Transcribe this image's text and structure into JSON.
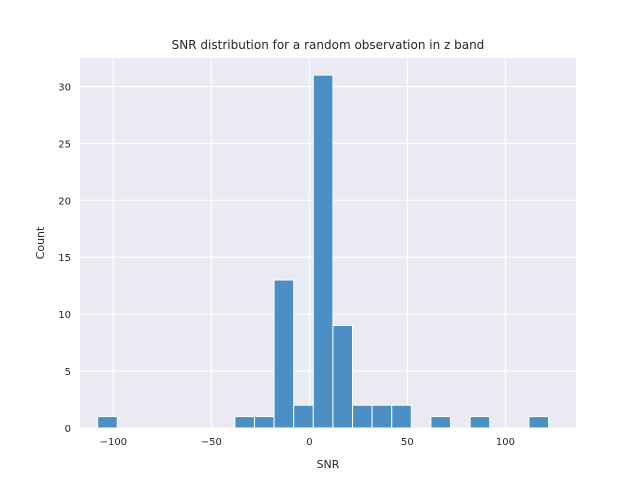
{
  "chart_data": {
    "type": "bar",
    "title": "SNR distribution for a random observation in z band",
    "xlabel": "SNR",
    "ylabel": "Count",
    "xlim": [
      -117,
      136
    ],
    "ylim": [
      0,
      32.5
    ],
    "xticks": [
      -100,
      -50,
      0,
      50,
      100
    ],
    "yticks": [
      0,
      5,
      10,
      15,
      20,
      25,
      30
    ],
    "bin_width": 10,
    "bins": [
      {
        "start": -108,
        "end": -98,
        "count": 1
      },
      {
        "start": -98,
        "end": -88,
        "count": 0
      },
      {
        "start": -88,
        "end": -78,
        "count": 0
      },
      {
        "start": -78,
        "end": -68,
        "count": 0
      },
      {
        "start": -68,
        "end": -58,
        "count": 0
      },
      {
        "start": -58,
        "end": -48,
        "count": 0
      },
      {
        "start": -48,
        "end": -38,
        "count": 0
      },
      {
        "start": -38,
        "end": -28,
        "count": 1
      },
      {
        "start": -28,
        "end": -18,
        "count": 1
      },
      {
        "start": -18,
        "end": -8,
        "count": 13
      },
      {
        "start": -8,
        "end": 2,
        "count": 2
      },
      {
        "start": 2,
        "end": 12,
        "count": 31
      },
      {
        "start": 12,
        "end": 22,
        "count": 9
      },
      {
        "start": 22,
        "end": 32,
        "count": 2
      },
      {
        "start": 32,
        "end": 42,
        "count": 2
      },
      {
        "start": 42,
        "end": 52,
        "count": 2
      },
      {
        "start": 52,
        "end": 62,
        "count": 0
      },
      {
        "start": 62,
        "end": 72,
        "count": 1
      },
      {
        "start": 72,
        "end": 82,
        "count": 0
      },
      {
        "start": 82,
        "end": 92,
        "count": 1
      },
      {
        "start": 92,
        "end": 102,
        "count": 0
      },
      {
        "start": 102,
        "end": 112,
        "count": 0
      },
      {
        "start": 112,
        "end": 122,
        "count": 1
      }
    ],
    "grid": true,
    "colors": {
      "background": "#eaeaf2",
      "bar_fill": "#4c8fc4",
      "grid": "#ffffff"
    }
  }
}
